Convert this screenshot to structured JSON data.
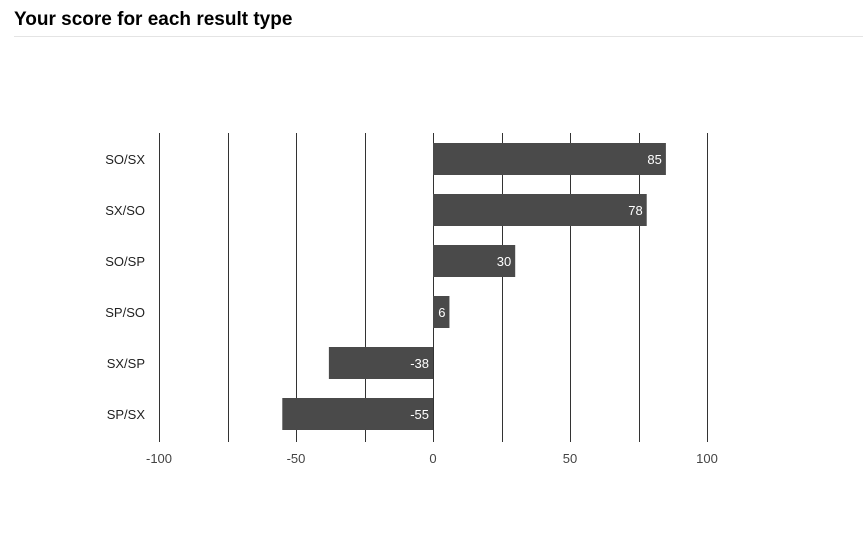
{
  "page": {
    "title": "Your score for each result type"
  },
  "chart_data": {
    "type": "bar",
    "orientation": "horizontal",
    "title": "",
    "xlabel": "",
    "ylabel": "",
    "categories": [
      "SO/SX",
      "SX/SO",
      "SO/SP",
      "SP/SO",
      "SX/SP",
      "SP/SX"
    ],
    "values": [
      85,
      78,
      30,
      6,
      -38,
      -55
    ],
    "xlim": [
      -100,
      100
    ],
    "x_ticks": [
      -100,
      -50,
      0,
      50,
      100
    ],
    "gridlines": [
      -100,
      -75,
      -50,
      -25,
      0,
      25,
      50,
      75,
      100
    ],
    "grid": true,
    "data_labels": true,
    "bar_color": "#4a4a4a",
    "grid_color": "#333333",
    "label_color": "#ffffff"
  }
}
